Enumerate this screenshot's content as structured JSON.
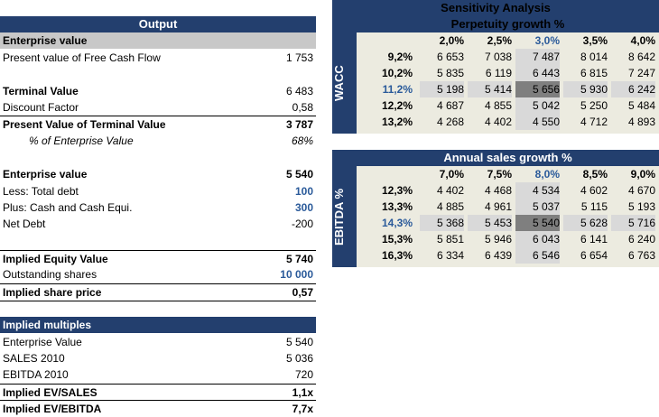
{
  "output": {
    "header": "Output",
    "ev_section": "Enterprise value",
    "pv_fcf": {
      "label": "Present value of Free Cash Flow",
      "value": "1 753"
    },
    "terminal_value": {
      "label": "Terminal Value",
      "value": "6 483"
    },
    "discount_factor": {
      "label": "Discount Factor",
      "value": "0,58"
    },
    "pv_tv": {
      "label": "Present Value of Terminal Value",
      "value": "3 787"
    },
    "pct_ev": {
      "label": "% of Enterprise Value",
      "value": "68%"
    },
    "enterprise_value": {
      "label": "Enterprise value",
      "value": "5 540"
    },
    "total_debt": {
      "label": "Less: Total debt",
      "value": "100"
    },
    "cash": {
      "label": "Plus: Cash and Cash Equi.",
      "value": "300"
    },
    "net_debt": {
      "label": "Net Debt",
      "value": "-200"
    },
    "equity_value": {
      "label": "Implied Equity Value",
      "value": "5 740"
    },
    "shares": {
      "label": "Outstanding shares",
      "value": "10 000"
    },
    "share_price": {
      "label": "Implied share price",
      "value": "0,57"
    }
  },
  "multiples": {
    "header": "Implied multiples",
    "ev": {
      "label": "Enterprise Value",
      "value": "5 540"
    },
    "sales": {
      "label": "SALES 2010",
      "value": "5 036"
    },
    "ebitda": {
      "label": "EBITDA 2010",
      "value": "720"
    },
    "ev_sales": {
      "label": "Implied EV/SALES",
      "value": "1,1x"
    },
    "ev_ebitda": {
      "label": "Implied EV/EBITDA",
      "value": "7,7x"
    }
  },
  "sensitivity1": {
    "title": "Sensitivity Analysis",
    "subtitle": "Perpetuity growth %",
    "row_axis": "WACC",
    "cols": [
      "2,0%",
      "2,5%",
      "3,0%",
      "3,5%",
      "4,0%"
    ],
    "rows": [
      "9,2%",
      "10,2%",
      "11,2%",
      "12,2%",
      "13,2%"
    ],
    "values": [
      [
        "6 653",
        "7 038",
        "7 487",
        "8 014",
        "8 642"
      ],
      [
        "5 835",
        "6 119",
        "6 443",
        "6 815",
        "7 247"
      ],
      [
        "5 198",
        "5 414",
        "5 656",
        "5 930",
        "6 242"
      ],
      [
        "4 687",
        "4 855",
        "5 042",
        "5 250",
        "5 484"
      ],
      [
        "4 268",
        "4 402",
        "4 550",
        "4 712",
        "4 893"
      ]
    ]
  },
  "sensitivity2": {
    "subtitle": "Annual sales growth %",
    "row_axis": "EBITDA %",
    "cols": [
      "7,0%",
      "7,5%",
      "8,0%",
      "8,5%",
      "9,0%"
    ],
    "rows": [
      "12,3%",
      "13,3%",
      "14,3%",
      "15,3%",
      "16,3%"
    ],
    "values": [
      [
        "4 402",
        "4 468",
        "4 534",
        "4 602",
        "4 670"
      ],
      [
        "4 885",
        "4 961",
        "5 037",
        "5 115",
        "5 193"
      ],
      [
        "5 368",
        "5 453",
        "5 540",
        "5 628",
        "5 716"
      ],
      [
        "5 851",
        "5 946",
        "6 043",
        "6 141",
        "6 240"
      ],
      [
        "6 334",
        "6 439",
        "6 546",
        "6 654",
        "6 763"
      ]
    ]
  },
  "colors": {
    "navy": "#233f6e",
    "blue_text": "#2a5a9a",
    "highlight": "#7f7f7f",
    "table_bg": "#ecebe0"
  }
}
